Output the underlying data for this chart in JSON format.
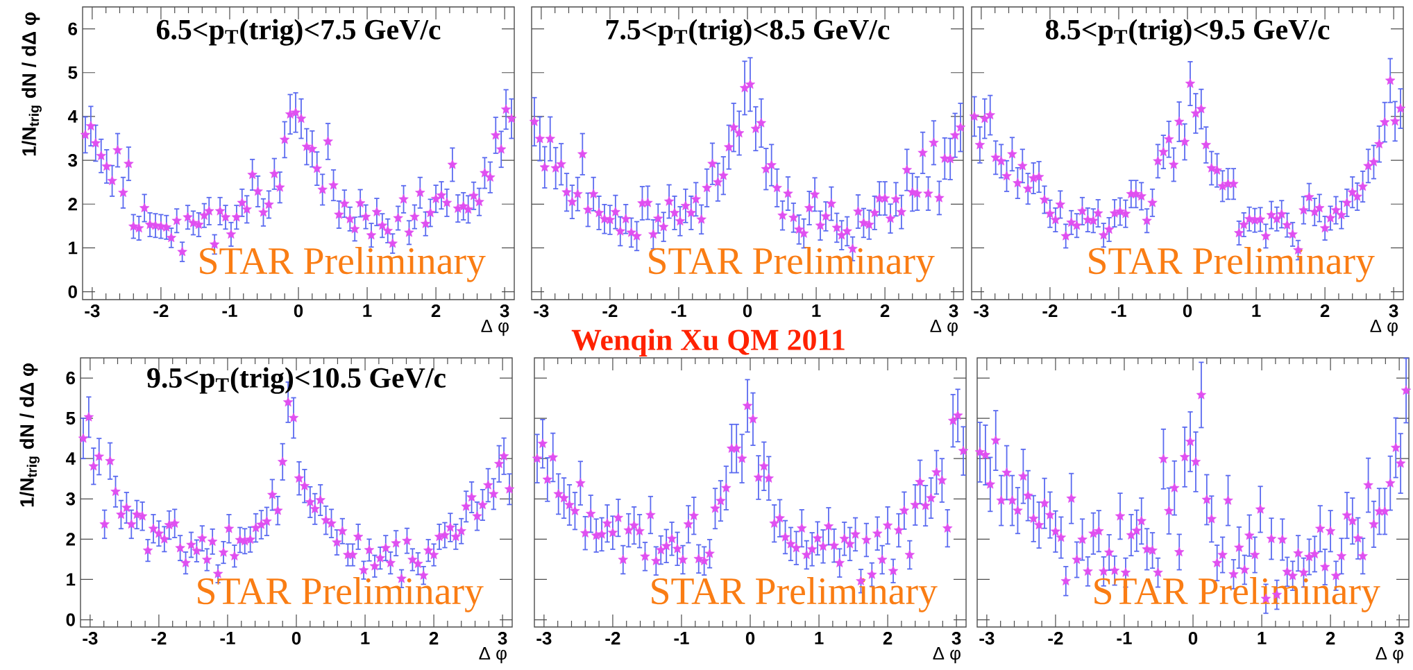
{
  "chart_data": [
    {
      "type": "scatter",
      "title": "6.5<p$_{T}$(trig)<7.5 GeV/c",
      "ylabel": "1/N$_{trig}$ dN / dΔ φ",
      "xlabel": "Δ φ",
      "color": "#e04ff0",
      "marker": "star",
      "x": [
        -3.1,
        -3.02,
        -2.95,
        -2.87,
        -2.79,
        -2.71,
        -2.63,
        -2.55,
        -2.47,
        -2.4,
        -2.32,
        -2.24,
        -2.16,
        -2.08,
        -2.0,
        -1.92,
        -1.85,
        -1.77,
        -1.69,
        -1.61,
        -1.53,
        -1.45,
        -1.37,
        -1.3,
        -1.22,
        -1.14,
        -1.06,
        -0.98,
        -0.9,
        -0.82,
        -0.75,
        -0.67,
        -0.59,
        -0.51,
        -0.43,
        -0.35,
        -0.27,
        -0.2,
        -0.12,
        -0.04,
        0.04,
        0.12,
        0.2,
        0.27,
        0.35,
        0.43,
        0.51,
        0.59,
        0.67,
        0.75,
        0.82,
        0.9,
        0.98,
        1.06,
        1.14,
        1.22,
        1.3,
        1.37,
        1.45,
        1.53,
        1.61,
        1.69,
        1.77,
        1.85,
        1.92,
        2.0,
        2.08,
        2.16,
        2.24,
        2.32,
        2.4,
        2.47,
        2.55,
        2.63,
        2.71,
        2.79,
        2.87,
        2.95,
        3.02,
        3.1
      ],
      "values": [
        3.58,
        3.78,
        3.39,
        3.1,
        2.86,
        2.53,
        3.23,
        2.26,
        2.92,
        1.49,
        1.45,
        1.91,
        1.53,
        1.51,
        1.49,
        1.47,
        1.23,
        1.62,
        0.91,
        1.7,
        1.57,
        1.53,
        1.74,
        1.84,
        1.08,
        1.84,
        1.7,
        1.31,
        1.7,
        2.03,
        1.88,
        2.67,
        2.29,
        1.81,
        1.99,
        2.69,
        2.38,
        3.47,
        4.05,
        4.09,
        3.95,
        3.31,
        3.26,
        2.81,
        2.33,
        3.43,
        2.43,
        1.76,
        2.01,
        1.66,
        1.43,
        2.02,
        1.71,
        1.29,
        1.82,
        1.51,
        1.39,
        1.1,
        1.68,
        2.11,
        1.35,
        1.71,
        2.26,
        1.55,
        1.8,
        2.12,
        2.2,
        2.03,
        2.9,
        1.9,
        1.95,
        1.88,
        2.19,
        2.05,
        2.71,
        2.61,
        3.57,
        3.25,
        4.16,
        3.95
      ],
      "errors": [
        0.41,
        0.45,
        0.41,
        0.38,
        0.38,
        0.35,
        0.38,
        0.35,
        0.38,
        0.27,
        0.27,
        0.31,
        0.27,
        0.27,
        0.27,
        0.27,
        0.22,
        0.27,
        0.22,
        0.27,
        0.27,
        0.27,
        0.27,
        0.31,
        0.22,
        0.31,
        0.27,
        0.27,
        0.27,
        0.31,
        0.31,
        0.35,
        0.35,
        0.31,
        0.31,
        0.35,
        0.35,
        0.41,
        0.45,
        0.45,
        0.45,
        0.41,
        0.41,
        0.38,
        0.35,
        0.41,
        0.35,
        0.31,
        0.31,
        0.27,
        0.27,
        0.31,
        0.27,
        0.27,
        0.31,
        0.27,
        0.27,
        0.22,
        0.27,
        0.31,
        0.27,
        0.27,
        0.35,
        0.27,
        0.31,
        0.31,
        0.31,
        0.31,
        0.38,
        0.31,
        0.31,
        0.31,
        0.31,
        0.31,
        0.35,
        0.35,
        0.41,
        0.41,
        0.45,
        0.45
      ],
      "xlim": [
        -3.14,
        3.14
      ],
      "ylim": [
        -0.18,
        6.5
      ],
      "xticks": [
        -3,
        -2,
        -1,
        0,
        1,
        2,
        3
      ],
      "yticks": [
        0,
        1,
        2,
        3,
        4,
        5,
        6
      ],
      "annotations": [
        "STAR Preliminary"
      ]
    },
    {
      "type": "scatter",
      "title": "7.5<p$_{T}$(trig)<8.5 GeV/c",
      "xlabel": "Δ φ",
      "color": "#e04ff0",
      "marker": "star",
      "x": [
        -3.1,
        -3.02,
        -2.95,
        -2.87,
        -2.79,
        -2.71,
        -2.63,
        -2.55,
        -2.47,
        -2.4,
        -2.32,
        -2.24,
        -2.16,
        -2.08,
        -2.0,
        -1.92,
        -1.85,
        -1.77,
        -1.69,
        -1.61,
        -1.53,
        -1.45,
        -1.37,
        -1.3,
        -1.22,
        -1.14,
        -1.06,
        -0.98,
        -0.9,
        -0.82,
        -0.75,
        -0.67,
        -0.59,
        -0.51,
        -0.43,
        -0.35,
        -0.27,
        -0.2,
        -0.12,
        -0.04,
        0.04,
        0.12,
        0.2,
        0.27,
        0.35,
        0.43,
        0.51,
        0.59,
        0.67,
        0.75,
        0.82,
        0.9,
        0.98,
        1.06,
        1.14,
        1.22,
        1.3,
        1.37,
        1.45,
        1.53,
        1.61,
        1.69,
        1.77,
        1.85,
        1.92,
        2.0,
        2.08,
        2.16,
        2.24,
        2.32,
        2.4,
        2.47,
        2.55,
        2.63,
        2.71,
        2.79,
        2.87,
        2.95,
        3.02,
        3.1
      ],
      "values": [
        3.88,
        3.49,
        2.84,
        3.49,
        2.82,
        2.91,
        2.27,
        2.05,
        2.23,
        3.14,
        1.87,
        2.23,
        1.8,
        1.66,
        1.64,
        1.82,
        1.38,
        1.66,
        1.35,
        1.27,
        2.02,
        2.03,
        1.31,
        1.67,
        1.48,
        2.06,
        1.8,
        1.61,
        1.96,
        1.8,
        2.11,
        1.65,
        2.37,
        2.92,
        2.5,
        2.65,
        3.3,
        3.75,
        3.62,
        4.65,
        4.73,
        3.72,
        3.85,
        2.8,
        2.89,
        2.37,
        1.74,
        2.24,
        1.69,
        1.42,
        1.33,
        1.91,
        2.22,
        1.51,
        1.72,
        2.01,
        1.46,
        1.29,
        1.38,
        0.98,
        1.83,
        1.57,
        1.53,
        1.8,
        2.13,
        2.13,
        1.67,
        2.11,
        1.82,
        2.78,
        2.27,
        2.24,
        3.17,
        2.24,
        3.4,
        2.14,
        3.04,
        3.03,
        3.57,
        3.75
      ],
      "errors": [
        0.55,
        0.5,
        0.47,
        0.5,
        0.47,
        0.47,
        0.43,
        0.38,
        0.38,
        0.47,
        0.38,
        0.38,
        0.38,
        0.33,
        0.33,
        0.38,
        0.33,
        0.33,
        0.33,
        0.33,
        0.38,
        0.38,
        0.33,
        0.33,
        0.33,
        0.38,
        0.38,
        0.33,
        0.38,
        0.38,
        0.38,
        0.33,
        0.43,
        0.47,
        0.43,
        0.43,
        0.5,
        0.55,
        0.5,
        0.61,
        0.61,
        0.5,
        0.55,
        0.47,
        0.47,
        0.43,
        0.33,
        0.38,
        0.33,
        0.33,
        0.33,
        0.38,
        0.38,
        0.33,
        0.33,
        0.38,
        0.33,
        0.33,
        0.33,
        0.27,
        0.38,
        0.33,
        0.33,
        0.38,
        0.38,
        0.38,
        0.33,
        0.38,
        0.38,
        0.47,
        0.43,
        0.38,
        0.47,
        0.38,
        0.5,
        0.38,
        0.47,
        0.47,
        0.5,
        0.55
      ],
      "xlim": [
        -3.14,
        3.14
      ],
      "ylim": [
        -0.18,
        6.5
      ],
      "xticks": [
        -3,
        -2,
        -1,
        0,
        1,
        2,
        3
      ],
      "yticks": [
        0,
        1,
        2,
        3,
        4,
        5,
        6
      ],
      "tick_labels": "x",
      "annotations": [
        "STAR Preliminary",
        "Wenqin Xu QM 2011"
      ]
    },
    {
      "type": "scatter",
      "title": "8.5<p$_{T}$(trig)<9.5 GeV/c",
      "xlabel": "Δ φ",
      "color": "#e04ff0",
      "marker": "star",
      "x": [
        -3.1,
        -3.02,
        -2.95,
        -2.87,
        -2.79,
        -2.71,
        -2.63,
        -2.55,
        -2.47,
        -2.4,
        -2.32,
        -2.24,
        -2.16,
        -2.08,
        -2.0,
        -1.92,
        -1.85,
        -1.77,
        -1.69,
        -1.61,
        -1.53,
        -1.45,
        -1.37,
        -1.3,
        -1.22,
        -1.14,
        -1.06,
        -0.98,
        -0.9,
        -0.82,
        -0.75,
        -0.67,
        -0.59,
        -0.51,
        -0.43,
        -0.35,
        -0.27,
        -0.2,
        -0.12,
        -0.04,
        0.04,
        0.12,
        0.2,
        0.27,
        0.35,
        0.43,
        0.51,
        0.59,
        0.67,
        0.75,
        0.82,
        0.9,
        0.98,
        1.06,
        1.14,
        1.22,
        1.3,
        1.37,
        1.45,
        1.53,
        1.61,
        1.69,
        1.77,
        1.85,
        1.92,
        2.0,
        2.08,
        2.16,
        2.24,
        2.32,
        2.4,
        2.47,
        2.55,
        2.63,
        2.71,
        2.79,
        2.87,
        2.95,
        3.02,
        3.1
      ],
      "values": [
        4.0,
        3.35,
        3.95,
        4.03,
        3.06,
        2.98,
        2.64,
        3.14,
        2.48,
        2.87,
        2.35,
        2.59,
        2.62,
        2.1,
        1.78,
        1.64,
        1.99,
        1.27,
        1.58,
        1.51,
        1.84,
        1.64,
        1.62,
        1.79,
        1.29,
        1.42,
        1.79,
        1.83,
        1.78,
        2.23,
        2.23,
        2.18,
        1.62,
        2.03,
        2.98,
        3.19,
        3.48,
        2.9,
        3.88,
        3.42,
        4.75,
        4.07,
        4.17,
        3.35,
        2.82,
        2.77,
        2.41,
        2.46,
        2.46,
        1.34,
        1.53,
        1.66,
        1.63,
        1.65,
        1.27,
        1.75,
        1.66,
        1.77,
        1.52,
        1.31,
        0.95,
        1.86,
        2.16,
        1.82,
        1.91,
        1.45,
        1.68,
        1.86,
        1.75,
        2.03,
        2.27,
        2.17,
        2.4,
        2.87,
        2.96,
        3.37,
        3.87,
        4.82,
        3.89,
        4.18
      ],
      "errors": [
        0.45,
        0.41,
        0.45,
        0.45,
        0.38,
        0.38,
        0.35,
        0.38,
        0.35,
        0.38,
        0.35,
        0.35,
        0.35,
        0.31,
        0.31,
        0.27,
        0.31,
        0.27,
        0.27,
        0.27,
        0.31,
        0.27,
        0.27,
        0.31,
        0.27,
        0.27,
        0.31,
        0.31,
        0.31,
        0.31,
        0.31,
        0.31,
        0.27,
        0.31,
        0.38,
        0.38,
        0.41,
        0.38,
        0.45,
        0.41,
        0.5,
        0.45,
        0.45,
        0.41,
        0.38,
        0.38,
        0.35,
        0.35,
        0.35,
        0.27,
        0.27,
        0.27,
        0.27,
        0.27,
        0.27,
        0.31,
        0.27,
        0.31,
        0.27,
        0.27,
        0.22,
        0.31,
        0.31,
        0.31,
        0.31,
        0.27,
        0.27,
        0.31,
        0.31,
        0.31,
        0.35,
        0.31,
        0.35,
        0.38,
        0.38,
        0.41,
        0.45,
        0.5,
        0.45,
        0.45
      ],
      "xlim": [
        -3.14,
        3.14
      ],
      "ylim": [
        -0.18,
        6.5
      ],
      "xticks": [
        -3,
        -2,
        -1,
        0,
        1,
        2,
        3
      ],
      "yticks": [
        0,
        1,
        2,
        3,
        4,
        5,
        6
      ],
      "tick_labels": "x",
      "annotations": [
        "STAR Preliminary"
      ]
    },
    {
      "type": "scatter",
      "title": "9.5<p$_{T}$(trig)<10.5 GeV/c",
      "ylabel": "1/N$_{trig}$ dN / dΔ φ",
      "xlabel": "Δ φ",
      "color": "#e04ff0",
      "marker": "star",
      "x": [
        -3.1,
        -3.02,
        -2.95,
        -2.87,
        -2.79,
        -2.71,
        -2.63,
        -2.55,
        -2.47,
        -2.4,
        -2.32,
        -2.24,
        -2.16,
        -2.08,
        -2.0,
        -1.92,
        -1.85,
        -1.77,
        -1.69,
        -1.61,
        -1.53,
        -1.45,
        -1.37,
        -1.3,
        -1.22,
        -1.14,
        -1.06,
        -0.98,
        -0.9,
        -0.82,
        -0.75,
        -0.67,
        -0.59,
        -0.51,
        -0.43,
        -0.35,
        -0.27,
        -0.2,
        -0.12,
        -0.04,
        0.04,
        0.12,
        0.2,
        0.27,
        0.35,
        0.43,
        0.51,
        0.59,
        0.67,
        0.75,
        0.82,
        0.9,
        0.98,
        1.06,
        1.14,
        1.22,
        1.3,
        1.37,
        1.45,
        1.53,
        1.61,
        1.69,
        1.77,
        1.85,
        1.92,
        2.0,
        2.08,
        2.16,
        2.24,
        2.32,
        2.4,
        2.47,
        2.55,
        2.63,
        2.71,
        2.79,
        2.87,
        2.95,
        3.02,
        3.1
      ],
      "values": [
        4.5,
        5.03,
        3.81,
        4.05,
        2.37,
        3.94,
        3.18,
        2.61,
        2.78,
        2.37,
        2.61,
        2.57,
        1.72,
        2.26,
        2.14,
        2.0,
        2.35,
        2.39,
        1.78,
        1.41,
        1.86,
        1.71,
        2.02,
        1.49,
        1.94,
        1.14,
        1.67,
        2.26,
        1.58,
        1.98,
        1.95,
        1.99,
        2.28,
        2.36,
        2.44,
        3.1,
        2.71,
        3.92,
        5.4,
        5.01,
        3.51,
        3.32,
        2.92,
        2.75,
        2.97,
        2.47,
        2.39,
        1.92,
        2.2,
        1.61,
        1.61,
        2.06,
        1.23,
        1.73,
        1.33,
        1.53,
        1.78,
        1.41,
        1.9,
        1.02,
        1.96,
        1.49,
        1.39,
        1.1,
        1.72,
        1.61,
        2.06,
        2.1,
        2.29,
        2.06,
        2.2,
        2.81,
        3.04,
        2.57,
        2.85,
        3.34,
        3.12,
        3.87,
        4.06,
        3.24
      ],
      "errors": [
        0.5,
        0.5,
        0.45,
        0.45,
        0.35,
        0.45,
        0.38,
        0.35,
        0.38,
        0.35,
        0.35,
        0.35,
        0.27,
        0.35,
        0.31,
        0.31,
        0.35,
        0.35,
        0.31,
        0.27,
        0.31,
        0.27,
        0.31,
        0.27,
        0.31,
        0.22,
        0.27,
        0.35,
        0.27,
        0.31,
        0.31,
        0.31,
        0.35,
        0.35,
        0.35,
        0.38,
        0.35,
        0.45,
        0.5,
        0.5,
        0.41,
        0.41,
        0.38,
        0.38,
        0.38,
        0.35,
        0.35,
        0.31,
        0.31,
        0.27,
        0.27,
        0.31,
        0.22,
        0.27,
        0.27,
        0.27,
        0.31,
        0.27,
        0.31,
        0.22,
        0.31,
        0.27,
        0.27,
        0.22,
        0.27,
        0.27,
        0.31,
        0.31,
        0.35,
        0.31,
        0.31,
        0.38,
        0.38,
        0.35,
        0.38,
        0.41,
        0.38,
        0.45,
        0.45,
        0.38
      ],
      "xlim": [
        -3.14,
        3.14
      ],
      "ylim": [
        -0.18,
        6.5
      ],
      "xticks": [
        -3,
        -2,
        -1,
        0,
        1,
        2,
        3
      ],
      "yticks": [
        0,
        1,
        2,
        3,
        4,
        5,
        6
      ],
      "annotations": [
        "STAR Preliminary"
      ]
    },
    {
      "type": "scatter",
      "xlabel": "Δ φ",
      "color": "#e04ff0",
      "marker": "star",
      "x": [
        -3.1,
        -3.02,
        -2.95,
        -2.87,
        -2.79,
        -2.71,
        -2.63,
        -2.55,
        -2.47,
        -2.4,
        -2.32,
        -2.24,
        -2.16,
        -2.08,
        -2.0,
        -1.92,
        -1.85,
        -1.77,
        -1.69,
        -1.61,
        -1.53,
        -1.45,
        -1.37,
        -1.3,
        -1.22,
        -1.14,
        -1.06,
        -0.98,
        -0.9,
        -0.82,
        -0.75,
        -0.67,
        -0.59,
        -0.51,
        -0.43,
        -0.35,
        -0.27,
        -0.2,
        -0.12,
        -0.04,
        0.04,
        0.12,
        0.2,
        0.27,
        0.35,
        0.43,
        0.51,
        0.59,
        0.67,
        0.75,
        0.82,
        0.9,
        0.98,
        1.06,
        1.14,
        1.22,
        1.3,
        1.37,
        1.45,
        1.53,
        1.61,
        1.69,
        1.77,
        1.85,
        1.92,
        2.0,
        2.08,
        2.16,
        2.24,
        2.32,
        2.4,
        2.47,
        2.55,
        2.63,
        2.71,
        2.79,
        2.87,
        2.95,
        3.02,
        3.1
      ],
      "values": [
        4.0,
        4.37,
        3.48,
        4.03,
        3.12,
        3.02,
        2.85,
        2.7,
        3.39,
        2.15,
        2.63,
        2.09,
        2.12,
        2.39,
        2.16,
        2.53,
        1.49,
        2.22,
        2.34,
        2.2,
        1.57,
        2.6,
        1.46,
        1.73,
        1.83,
        2.01,
        1.76,
        1.49,
        2.37,
        2.58,
        1.51,
        1.46,
        1.64,
        2.76,
        2.95,
        3.27,
        4.25,
        4.25,
        4.0,
        5.31,
        4.98,
        3.53,
        3.81,
        3.51,
        2.39,
        2.52,
        2.05,
        1.88,
        1.78,
        2.27,
        1.61,
        1.75,
        2.02,
        1.82,
        2.32,
        1.84,
        1.41,
        2.01,
        1.88,
        2.12,
        0.96,
        1.98,
        1.12,
        2.14,
        1.49,
        2.34,
        1.21,
        2.22,
        2.71,
        1.61,
        2.85,
        3.42,
        2.83,
        3.02,
        3.66,
        3.46,
        2.27,
        4.94,
        5.07,
        4.19
      ],
      "errors": [
        0.6,
        0.6,
        0.54,
        0.6,
        0.5,
        0.5,
        0.5,
        0.46,
        0.54,
        0.41,
        0.46,
        0.41,
        0.41,
        0.46,
        0.41,
        0.46,
        0.35,
        0.41,
        0.46,
        0.41,
        0.35,
        0.46,
        0.35,
        0.35,
        0.41,
        0.41,
        0.41,
        0.35,
        0.46,
        0.46,
        0.35,
        0.35,
        0.35,
        0.5,
        0.5,
        0.54,
        0.6,
        0.6,
        0.6,
        0.65,
        0.65,
        0.54,
        0.6,
        0.54,
        0.46,
        0.46,
        0.41,
        0.41,
        0.41,
        0.46,
        0.35,
        0.41,
        0.41,
        0.41,
        0.46,
        0.41,
        0.35,
        0.41,
        0.41,
        0.41,
        0.29,
        0.41,
        0.29,
        0.41,
        0.35,
        0.46,
        0.29,
        0.41,
        0.46,
        0.35,
        0.5,
        0.54,
        0.5,
        0.5,
        0.54,
        0.54,
        0.46,
        0.65,
        0.65,
        0.6
      ],
      "xlim": [
        -3.14,
        3.14
      ],
      "ylim": [
        -0.18,
        6.5
      ],
      "xticks": [
        -3,
        -2,
        -1,
        0,
        1,
        2,
        3
      ],
      "yticks": [
        0,
        1,
        2,
        3,
        4,
        5,
        6
      ],
      "tick_labels": "x",
      "annotations": [
        "STAR Preliminary"
      ]
    },
    {
      "type": "scatter",
      "xlabel": "Δ φ",
      "color": "#e04ff0",
      "marker": "star",
      "x": [
        -3.1,
        -3.02,
        -2.95,
        -2.87,
        -2.79,
        -2.71,
        -2.63,
        -2.55,
        -2.47,
        -2.4,
        -2.32,
        -2.24,
        -2.16,
        -2.08,
        -2.0,
        -1.92,
        -1.85,
        -1.77,
        -1.69,
        -1.61,
        -1.53,
        -1.45,
        -1.37,
        -1.3,
        -1.22,
        -1.14,
        -1.06,
        -0.98,
        -0.9,
        -0.82,
        -0.75,
        -0.67,
        -0.59,
        -0.51,
        -0.43,
        -0.35,
        -0.27,
        -0.2,
        -0.12,
        -0.04,
        0.04,
        0.12,
        0.2,
        0.27,
        0.35,
        0.43,
        0.51,
        0.59,
        0.67,
        0.75,
        0.82,
        0.9,
        0.98,
        1.06,
        1.14,
        1.22,
        1.3,
        1.37,
        1.45,
        1.53,
        1.61,
        1.69,
        1.77,
        1.85,
        1.92,
        2.0,
        2.08,
        2.16,
        2.24,
        2.32,
        2.4,
        2.47,
        2.55,
        2.63,
        2.71,
        2.79,
        2.87,
        2.95,
        3.02,
        3.1
      ],
      "values": [
        4.16,
        4.09,
        3.36,
        4.45,
        2.96,
        3.65,
        2.96,
        2.71,
        3.56,
        3.08,
        2.51,
        2.35,
        2.89,
        2.6,
        2.19,
        2.04,
        0.96,
        3.01,
        1.49,
        1.99,
        1.2,
        2.14,
        2.2,
        1.2,
        1.67,
        1.22,
        2.57,
        1.17,
        2.1,
        2.21,
        2.45,
        1.75,
        1.72,
        1.17,
        3.99,
        2.7,
        3.27,
        1.68,
        4.04,
        4.42,
        3.92,
        5.58,
        2.98,
        2.5,
        1.41,
        1.61,
        2.96,
        1.13,
        1.79,
        1.24,
        2.09,
        1.61,
        2.74,
        0.52,
        2.01,
        0.62,
        1.99,
        1.19,
        1.09,
        1.65,
        1.17,
        1.56,
        1.63,
        2.26,
        1.31,
        2.2,
        1.09,
        1.58,
        2.59,
        2.45,
        2.02,
        1.58,
        3.34,
        2.37,
        2.69,
        2.69,
        3.39,
        4.27,
        3.88,
        5.69
      ],
      "errors": [
        0.74,
        0.74,
        0.67,
        0.74,
        0.62,
        0.67,
        0.62,
        0.57,
        0.67,
        0.62,
        0.57,
        0.57,
        0.62,
        0.57,
        0.51,
        0.51,
        0.36,
        0.62,
        0.44,
        0.51,
        0.36,
        0.51,
        0.51,
        0.36,
        0.44,
        0.36,
        0.57,
        0.36,
        0.51,
        0.51,
        0.57,
        0.51,
        0.44,
        0.36,
        0.74,
        0.57,
        0.67,
        0.44,
        0.74,
        0.74,
        0.74,
        0.81,
        0.62,
        0.57,
        0.44,
        0.44,
        0.62,
        0.36,
        0.51,
        0.36,
        0.51,
        0.44,
        0.57,
        0.36,
        0.51,
        0.36,
        0.51,
        0.36,
        0.36,
        0.44,
        0.36,
        0.44,
        0.44,
        0.57,
        0.44,
        0.51,
        0.36,
        0.44,
        0.57,
        0.57,
        0.51,
        0.44,
        0.67,
        0.57,
        0.57,
        0.57,
        0.67,
        0.74,
        0.74,
        0.8
      ],
      "xlim": [
        -3.14,
        3.14
      ],
      "ylim": [
        -0.18,
        6.5
      ],
      "xticks": [
        -3,
        -2,
        -1,
        0,
        1,
        2,
        3
      ],
      "yticks": [
        0,
        1,
        2,
        3,
        4,
        5,
        6
      ],
      "tick_labels": "x",
      "annotations": [
        "STAR Preliminary"
      ]
    }
  ]
}
